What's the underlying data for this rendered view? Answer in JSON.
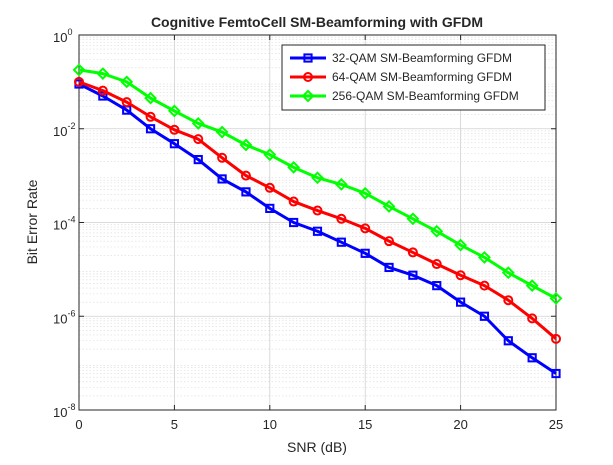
{
  "chart_data": {
    "type": "line",
    "title": "Cognitive FemtoCell SM-Beamforming with GFDM",
    "xlabel": "SNR (dB)",
    "ylabel": "Bit Error Rate",
    "xlim": [
      0,
      25
    ],
    "ylim": [
      1e-08,
      1
    ],
    "yscale": "log",
    "grid": true,
    "minor_grid": true,
    "legend_position": "top-right",
    "x_ticks": [
      0,
      5,
      10,
      15,
      20,
      25
    ],
    "x_tick_labels": [
      "0",
      "5",
      "10",
      "15",
      "20",
      "25"
    ],
    "y_ticks": [
      1e-08,
      1e-06,
      0.0001,
      0.01,
      1
    ],
    "y_tick_labels": [
      {
        "base": "10",
        "exp": "-8"
      },
      {
        "base": "10",
        "exp": "-6"
      },
      {
        "base": "10",
        "exp": "-4"
      },
      {
        "base": "10",
        "exp": "-2"
      },
      {
        "base": "10",
        "exp": "0"
      }
    ],
    "x": [
      0,
      1.25,
      2.5,
      3.75,
      5,
      6.25,
      7.5,
      8.75,
      10,
      11.25,
      12.5,
      13.75,
      15,
      16.25,
      17.5,
      18.75,
      20,
      21.25,
      22.5,
      23.75,
      25
    ],
    "series": [
      {
        "name": "32-QAM SM-Beamforming GFDM",
        "color": "#0000ff",
        "marker": "square",
        "values": [
          0.09,
          0.05,
          0.025,
          0.01,
          0.0048,
          0.0022,
          0.00085,
          0.00045,
          0.0002,
          0.0001,
          6.5e-05,
          3.8e-05,
          2.2e-05,
          1.1e-05,
          7.5e-06,
          4.5e-06,
          2e-06,
          1e-06,
          3e-07,
          1.3e-07,
          6e-08
        ]
      },
      {
        "name": "64-QAM SM-Beamforming GFDM",
        "color": "#ff0000",
        "marker": "circle",
        "values": [
          0.1,
          0.065,
          0.037,
          0.018,
          0.0095,
          0.006,
          0.0024,
          0.001,
          0.00055,
          0.00028,
          0.00018,
          0.00012,
          7.5e-05,
          4e-05,
          2.3e-05,
          1.3e-05,
          7.5e-06,
          4.5e-06,
          2.2e-06,
          9e-07,
          3.3e-07
        ]
      },
      {
        "name": "256-QAM SM-Beamforming GFDM",
        "color": "#00ff00",
        "marker": "diamond",
        "values": [
          0.18,
          0.15,
          0.1,
          0.045,
          0.024,
          0.013,
          0.0085,
          0.0045,
          0.0028,
          0.0015,
          0.0009,
          0.00065,
          0.00042,
          0.00022,
          0.00012,
          6.5e-05,
          3.3e-05,
          1.8e-05,
          8.5e-06,
          4.5e-06,
          2.4e-06
        ]
      }
    ]
  }
}
